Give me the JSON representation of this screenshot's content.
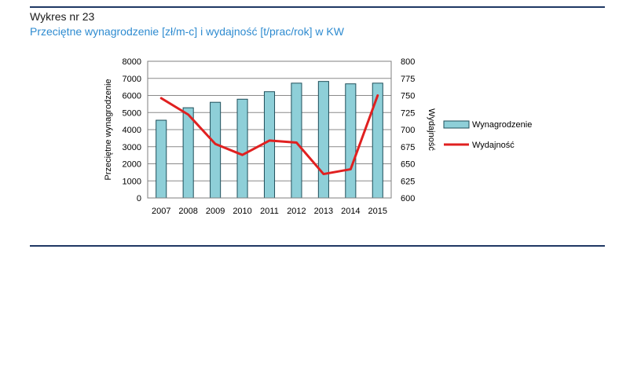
{
  "header": {
    "title": "Wykres nr 23",
    "subtitle": "Przeciętne wynagrodzenie [zł/m-c] i wydajność [t/prac/rok] w KW"
  },
  "colors": {
    "bar_fill": "#8ecfd8",
    "bar_stroke": "#1f4f5a",
    "line": "#e02020",
    "rule": "#1f3864",
    "subtitle": "#2e8bd0"
  },
  "chart_data": {
    "type": "bar+line",
    "categories": [
      "2007",
      "2008",
      "2009",
      "2010",
      "2011",
      "2012",
      "2013",
      "2014",
      "2015"
    ],
    "series": [
      {
        "name": "Wynagrodzenie",
        "type": "bar",
        "axis": "left",
        "values": [
          4550,
          5280,
          5600,
          5780,
          6220,
          6720,
          6820,
          6680,
          6720
        ]
      },
      {
        "name": "Wydajność",
        "type": "line",
        "axis": "right",
        "values": [
          746,
          722,
          679,
          663,
          684,
          681,
          635,
          642,
          750
        ]
      }
    ],
    "ylabel_left": "Przeciętne wynagrodzenie",
    "ylabel_right": "Wydajność",
    "ylim_left": [
      0,
      8000
    ],
    "ylim_right": [
      600,
      800
    ],
    "yticks_left": [
      "0",
      "1000",
      "2000",
      "3000",
      "4000",
      "5000",
      "6000",
      "7000",
      "8000"
    ],
    "yticks_right": [
      "600",
      "625",
      "650",
      "675",
      "700",
      "725",
      "750",
      "775",
      "800"
    ],
    "grid": true,
    "legend": "right"
  }
}
